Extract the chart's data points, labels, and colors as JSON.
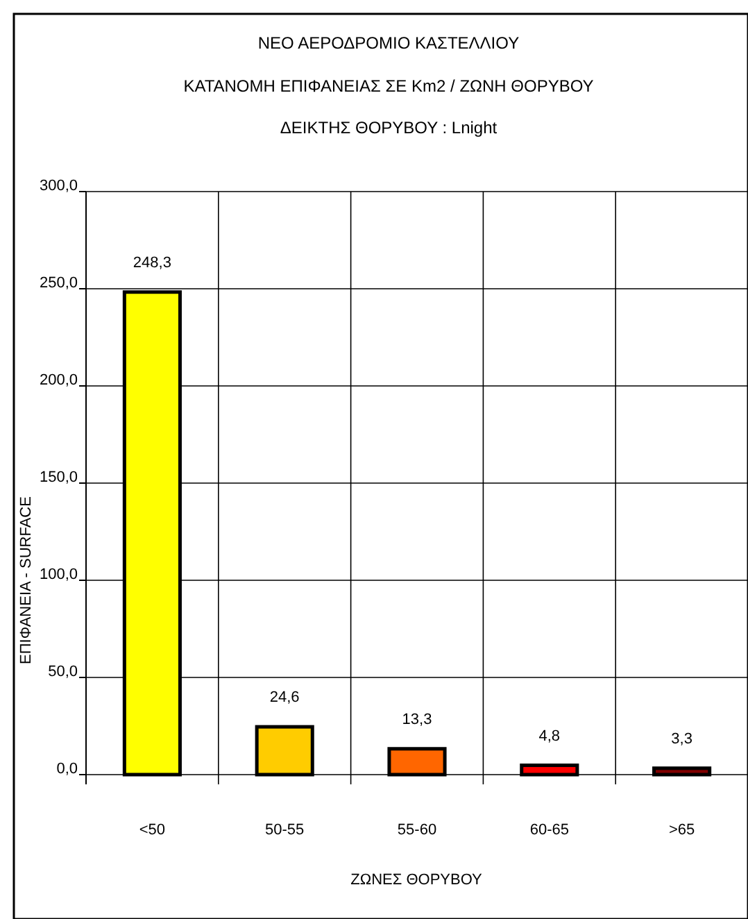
{
  "chart_data": {
    "type": "bar",
    "title": "ΝΕΟ ΑΕΡΟΔΡΟΜΙΟ ΚΑΣΤΕΛΛΙΟΥ",
    "subtitle": "ΚΑΤΑΝΟΜΗ ΕΠΙΦΑΝΕΙΑΣ ΣΕ Km2 / ΖΩΝΗ ΘΟΡΥΒΟΥ\nΔΕΙΚΤΗΣ ΘΟΡΥΒΟΥ  :  Lnight",
    "xlabel": "ΖΩΝΕΣ ΘΟΡΥΒΟΥ",
    "ylabel": "ΕΠΙΦΑΝΕΙΑ - SURFACE",
    "categories": [
      "<50",
      "50-55",
      "55-60",
      "60-65",
      ">65"
    ],
    "values": [
      248.3,
      24.6,
      13.3,
      4.8,
      3.3
    ],
    "colors": [
      "#ffff00",
      "#ffcc00",
      "#ff6600",
      "#ff0000",
      "#800000"
    ],
    "value_labels": [
      "248,3",
      "24,6",
      "13,3",
      "4,8",
      "3,3"
    ],
    "ylim": [
      0,
      300
    ],
    "yticks": [
      {
        "value": 0,
        "label": "0,0"
      },
      {
        "value": 50,
        "label": "50,0"
      },
      {
        "value": 100,
        "label": "100,0"
      },
      {
        "value": 150,
        "label": "150,0"
      },
      {
        "value": 200,
        "label": "200,0"
      },
      {
        "value": 250,
        "label": "250,0"
      },
      {
        "value": 300,
        "label": "300,0"
      }
    ],
    "grid": true
  }
}
